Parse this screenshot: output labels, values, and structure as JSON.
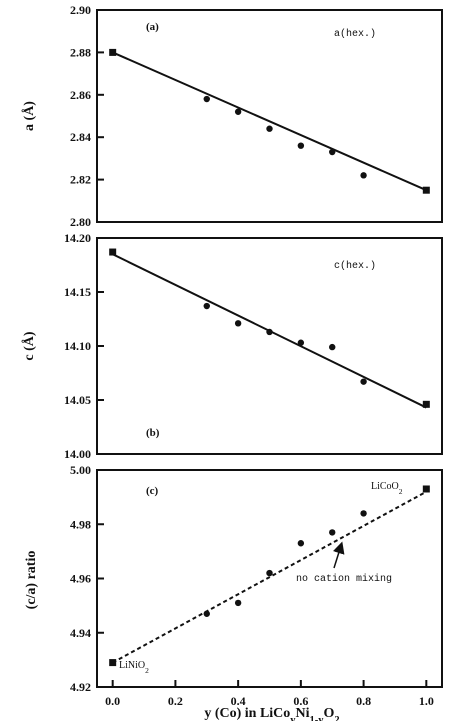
{
  "chart_data": [
    {
      "type": "scatter",
      "panel_label": "(a)",
      "series_label": "a(hex.)",
      "ylabel": "a (Å)",
      "ylim": [
        2.8,
        2.9
      ],
      "yticks": [
        "2.80",
        "2.82",
        "2.84",
        "2.86",
        "2.88",
        "2.90"
      ],
      "xlim": [
        -0.05,
        1.05
      ],
      "points": [
        {
          "x": 0.0,
          "y": 2.88,
          "marker": "square"
        },
        {
          "x": 0.3,
          "y": 2.858,
          "marker": "circle"
        },
        {
          "x": 0.4,
          "y": 2.852,
          "marker": "circle"
        },
        {
          "x": 0.5,
          "y": 2.844,
          "marker": "circle"
        },
        {
          "x": 0.6,
          "y": 2.836,
          "marker": "circle"
        },
        {
          "x": 0.7,
          "y": 2.833,
          "marker": "circle"
        },
        {
          "x": 0.8,
          "y": 2.822,
          "marker": "circle"
        },
        {
          "x": 1.0,
          "y": 2.815,
          "marker": "square"
        }
      ],
      "fit_line": {
        "style": "solid",
        "x": [
          0.0,
          1.0
        ],
        "y": [
          2.88,
          2.815
        ]
      }
    },
    {
      "type": "scatter",
      "panel_label": "(b)",
      "series_label": "c(hex.)",
      "ylabel": "c (Å)",
      "ylim": [
        14.0,
        14.2
      ],
      "yticks": [
        "14.00",
        "14.05",
        "14.10",
        "14.15",
        "14.20"
      ],
      "xlim": [
        -0.05,
        1.05
      ],
      "points": [
        {
          "x": 0.0,
          "y": 14.187,
          "marker": "square"
        },
        {
          "x": 0.3,
          "y": 14.137,
          "marker": "circle"
        },
        {
          "x": 0.4,
          "y": 14.121,
          "marker": "circle"
        },
        {
          "x": 0.5,
          "y": 14.113,
          "marker": "circle"
        },
        {
          "x": 0.6,
          "y": 14.103,
          "marker": "circle"
        },
        {
          "x": 0.7,
          "y": 14.099,
          "marker": "circle"
        },
        {
          "x": 0.8,
          "y": 14.067,
          "marker": "circle"
        },
        {
          "x": 1.0,
          "y": 14.046,
          "marker": "square"
        }
      ],
      "fit_line": {
        "style": "solid",
        "x": [
          0.0,
          1.0
        ],
        "y": [
          14.185,
          14.043
        ]
      }
    },
    {
      "type": "scatter",
      "panel_label": "(c)",
      "ylabel": "(c/a) ratio",
      "ylim": [
        4.92,
        5.0
      ],
      "yticks": [
        "4.92",
        "4.94",
        "4.96",
        "4.98",
        "5.00"
      ],
      "xlim": [
        -0.05,
        1.05
      ],
      "xlabel": "y (Co) in LiCoyNi1-yO2",
      "xticks": [
        "0.0",
        "0.2",
        "0.4",
        "0.6",
        "0.8",
        "1.0"
      ],
      "points": [
        {
          "x": 0.0,
          "y": 4.929,
          "marker": "square"
        },
        {
          "x": 0.3,
          "y": 4.947,
          "marker": "circle"
        },
        {
          "x": 0.4,
          "y": 4.951,
          "marker": "circle"
        },
        {
          "x": 0.5,
          "y": 4.962,
          "marker": "circle"
        },
        {
          "x": 0.6,
          "y": 4.973,
          "marker": "circle"
        },
        {
          "x": 0.7,
          "y": 4.977,
          "marker": "circle"
        },
        {
          "x": 0.8,
          "y": 4.984,
          "marker": "circle"
        },
        {
          "x": 1.0,
          "y": 4.993,
          "marker": "square"
        }
      ],
      "fit_line": {
        "style": "dashed",
        "x": [
          0.0,
          1.0
        ],
        "y": [
          4.929,
          4.992
        ]
      },
      "annotation": {
        "text": "no cation mixing",
        "arrow_to": {
          "x": 0.72,
          "y": 4.973
        }
      },
      "end_labels": [
        {
          "text": "LiNiO2",
          "x": 0.0,
          "y": 4.929
        },
        {
          "text": "LiCoO2",
          "x": 1.0,
          "y": 4.993
        }
      ]
    }
  ]
}
